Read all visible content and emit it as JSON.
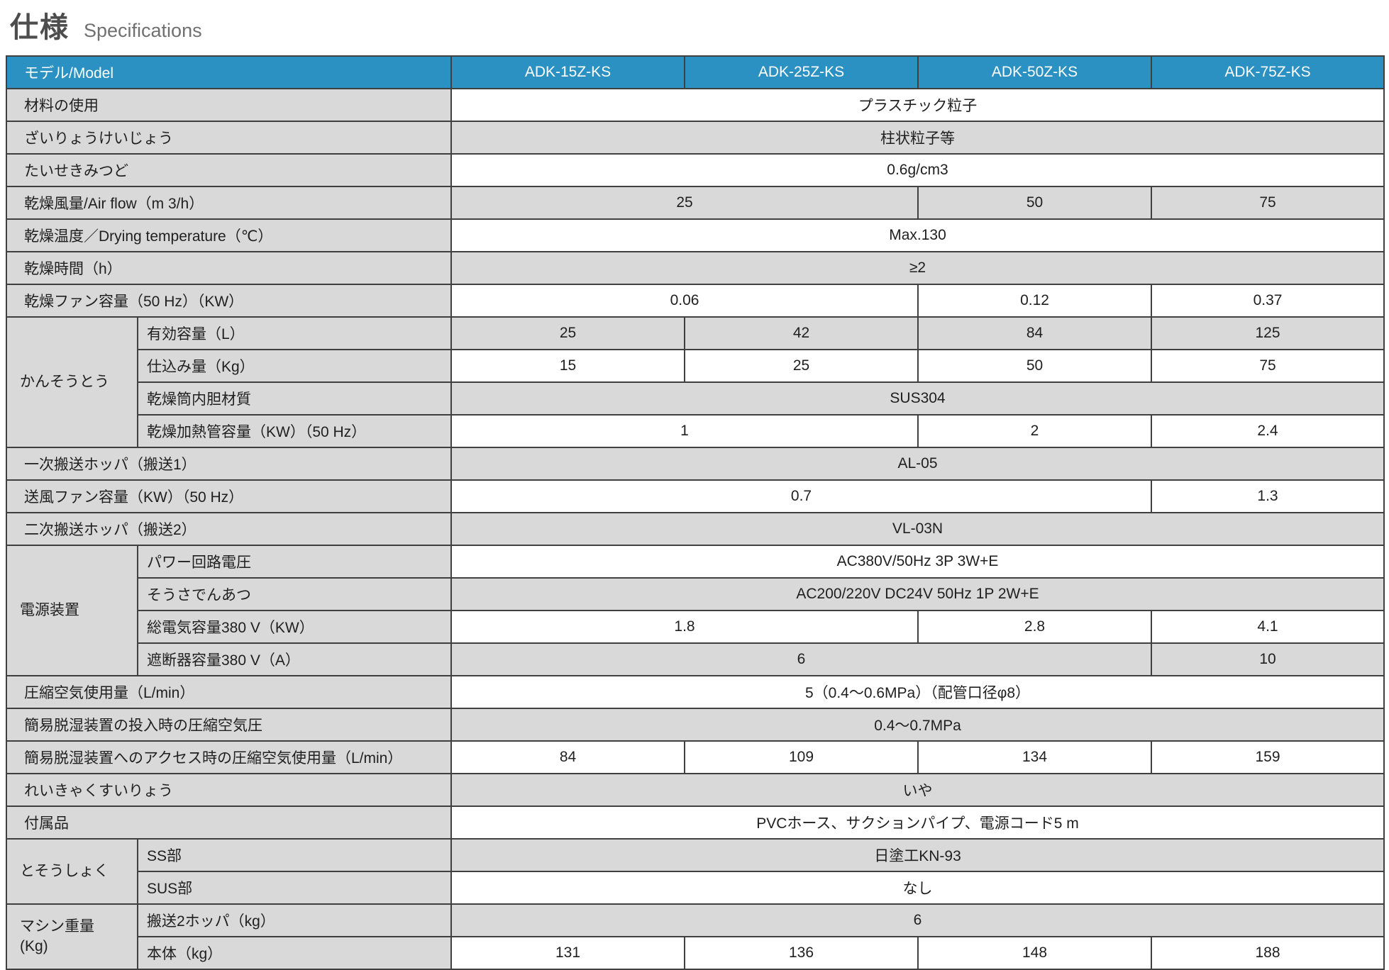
{
  "page_title": {
    "jp": "仕様",
    "en": "Specifications"
  },
  "colors": {
    "header_bg": "#2a91c2",
    "header_text": "#ffffff",
    "label_bg": "#d9d9d9",
    "row_shade_bg": "#d9d9d9",
    "row_bg": "#ffffff",
    "border": "#404040",
    "title_jp": "#4d4d4d",
    "title_en": "#707070"
  },
  "table": {
    "header": {
      "model_label": "モデル/Model",
      "models": [
        "ADK-15Z-KS",
        "ADK-25Z-KS",
        "ADK-50Z-KS",
        "ADK-75Z-KS"
      ]
    },
    "rows": [
      {
        "label": "材料の使用",
        "cells": [
          {
            "t": "プラスチック粒子",
            "s": 4
          }
        ]
      },
      {
        "label": "ざいりょうけいじょう",
        "cells": [
          {
            "t": "柱状粒子等",
            "s": 4
          }
        ]
      },
      {
        "label": "たいせきみつど",
        "cells": [
          {
            "t": "0.6g/cm3",
            "s": 4
          }
        ]
      },
      {
        "label": "乾燥風量/Air flow（m 3/h）",
        "cells": [
          {
            "t": "25",
            "s": 2
          },
          {
            "t": "50",
            "s": 1
          },
          {
            "t": "75",
            "s": 1
          }
        ]
      },
      {
        "label": "乾燥温度／Drying temperature（℃）",
        "cells": [
          {
            "t": "Max.130",
            "s": 4
          }
        ]
      },
      {
        "label": "乾燥時間（h）",
        "cells": [
          {
            "t": "≥2",
            "s": 4
          }
        ]
      },
      {
        "label": "乾燥ファン容量（50 Hz）（KW）",
        "cells": [
          {
            "t": "0.06",
            "s": 2
          },
          {
            "t": "0.12",
            "s": 1
          },
          {
            "t": "0.37",
            "s": 1
          }
        ]
      },
      {
        "group": {
          "label": "かんそうとう",
          "span": 4
        },
        "sub": "有効容量（L）",
        "cells": [
          {
            "t": "25",
            "s": 1
          },
          {
            "t": "42",
            "s": 1
          },
          {
            "t": "84",
            "s": 1
          },
          {
            "t": "125",
            "s": 1
          }
        ]
      },
      {
        "sub": "仕込み量（Kg）",
        "cells": [
          {
            "t": "15",
            "s": 1
          },
          {
            "t": "25",
            "s": 1
          },
          {
            "t": "50",
            "s": 1
          },
          {
            "t": "75",
            "s": 1
          }
        ]
      },
      {
        "sub": "乾燥筒内胆材質",
        "cells": [
          {
            "t": "SUS304",
            "s": 4
          }
        ]
      },
      {
        "sub": "乾燥加熱管容量（KW）（50 Hz）",
        "cells": [
          {
            "t": "1",
            "s": 2
          },
          {
            "t": "2",
            "s": 1
          },
          {
            "t": "2.4",
            "s": 1
          }
        ]
      },
      {
        "label": "一次搬送ホッパ（搬送1）",
        "cells": [
          {
            "t": "AL-05",
            "s": 4
          }
        ]
      },
      {
        "label": "送風ファン容量（KW）（50 Hz）",
        "cells": [
          {
            "t": "0.7",
            "s": 3
          },
          {
            "t": "1.3",
            "s": 1
          }
        ]
      },
      {
        "label": "二次搬送ホッパ（搬送2）",
        "cells": [
          {
            "t": "VL-03N",
            "s": 4
          }
        ]
      },
      {
        "group": {
          "label": "電源装置",
          "span": 4
        },
        "sub": "パワー回路電圧",
        "cells": [
          {
            "t": "AC380V/50Hz 3P 3W+E",
            "s": 4
          }
        ]
      },
      {
        "sub": "そうさでんあつ",
        "cells": [
          {
            "t": "AC200/220V DC24V 50Hz 1P 2W+E",
            "s": 4
          }
        ]
      },
      {
        "sub": "総電気容量380 V（KW）",
        "cells": [
          {
            "t": "1.8",
            "s": 2
          },
          {
            "t": "2.8",
            "s": 1
          },
          {
            "t": "4.1",
            "s": 1
          }
        ]
      },
      {
        "sub": "遮断器容量380 V（A）",
        "cells": [
          {
            "t": "6",
            "s": 3
          },
          {
            "t": "10",
            "s": 1
          }
        ]
      },
      {
        "label": "圧縮空気使用量（L/min）",
        "cells": [
          {
            "t": "5（0.4〜0.6MPa）（配管口径φ8）",
            "s": 4
          }
        ]
      },
      {
        "label": "簡易脱湿装置の投入時の圧縮空気圧",
        "cells": [
          {
            "t": "0.4〜0.7MPa",
            "s": 4
          }
        ]
      },
      {
        "label": "簡易脱湿装置へのアクセス時の圧縮空気使用量（L/min）",
        "cells": [
          {
            "t": "84",
            "s": 1
          },
          {
            "t": "109",
            "s": 1
          },
          {
            "t": "134",
            "s": 1
          },
          {
            "t": "159",
            "s": 1
          }
        ]
      },
      {
        "label": "れいきゃくすいりょう",
        "cells": [
          {
            "t": "いや",
            "s": 4
          }
        ]
      },
      {
        "label": "付属品",
        "cells": [
          {
            "t": "PVCホース、サクションパイプ、電源コード5 m",
            "s": 4
          }
        ]
      },
      {
        "group": {
          "label": "とそうしょく",
          "span": 2
        },
        "sub": "SS部",
        "cells": [
          {
            "t": "日塗工KN-93",
            "s": 4
          }
        ]
      },
      {
        "sub": "SUS部",
        "cells": [
          {
            "t": "なし",
            "s": 4
          }
        ]
      },
      {
        "group": {
          "label": "マシン重量\n(Kg)",
          "span": 2
        },
        "sub": "搬送2ホッパ（kg）",
        "cells": [
          {
            "t": "6",
            "s": 4
          }
        ]
      },
      {
        "sub": "本体（kg）",
        "cells": [
          {
            "t": "131",
            "s": 1
          },
          {
            "t": "136",
            "s": 1
          },
          {
            "t": "148",
            "s": 1
          },
          {
            "t": "188",
            "s": 1
          }
        ]
      }
    ]
  }
}
